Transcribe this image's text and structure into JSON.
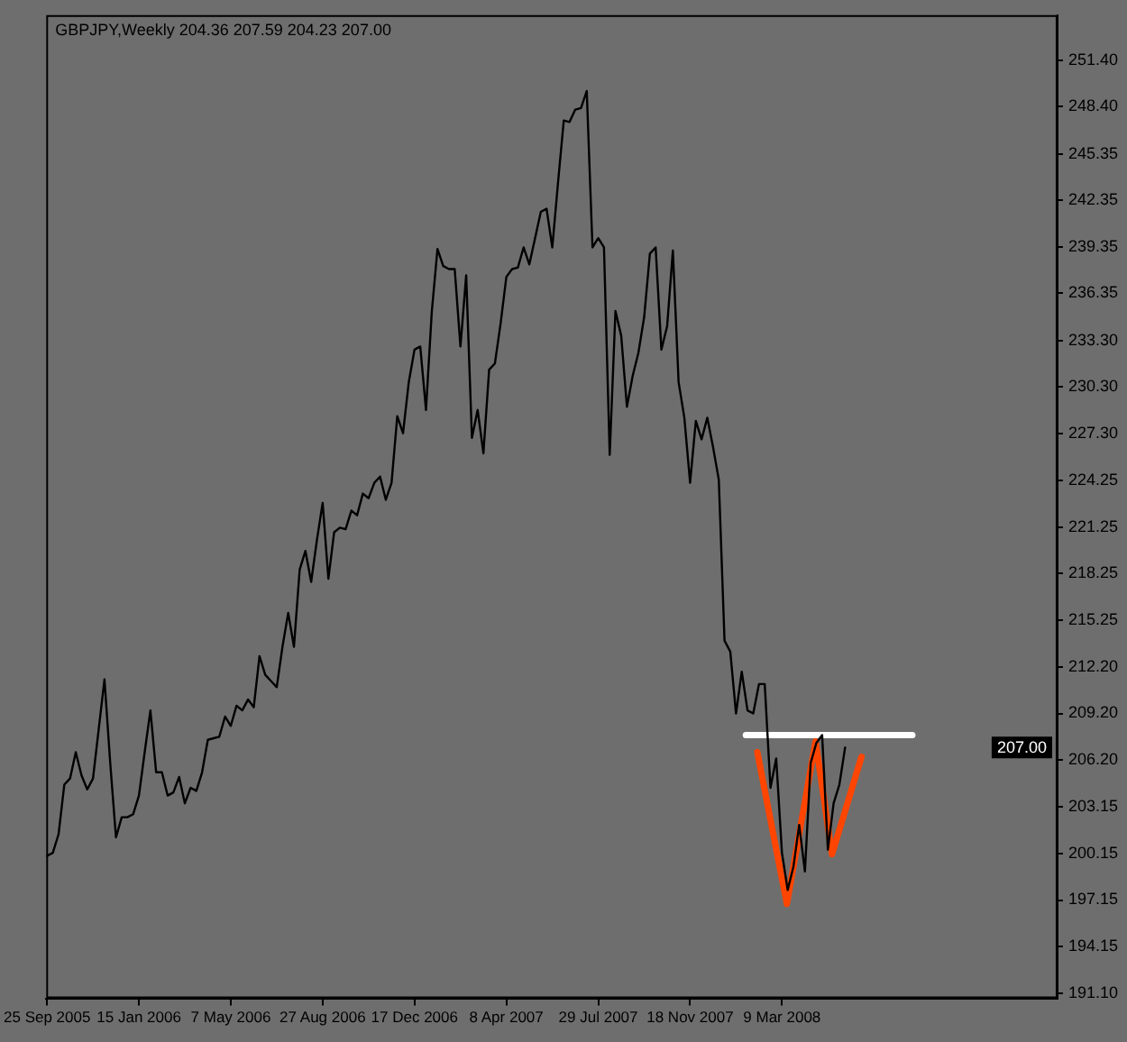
{
  "chart_data": {
    "type": "line",
    "title": "GBPJPY,Weekly 204.36 207.59 204.23 207.00",
    "x": [
      "2005-09-25",
      "2005-10-02",
      "2005-10-09",
      "2005-10-16",
      "2005-10-23",
      "2005-10-30",
      "2005-11-06",
      "2005-11-13",
      "2005-11-20",
      "2005-11-27",
      "2005-12-04",
      "2005-12-11",
      "2005-12-18",
      "2005-12-25",
      "2006-01-01",
      "2006-01-08",
      "2006-01-15",
      "2006-01-22",
      "2006-01-29",
      "2006-02-05",
      "2006-02-12",
      "2006-02-19",
      "2006-02-26",
      "2006-03-05",
      "2006-03-12",
      "2006-03-19",
      "2006-03-26",
      "2006-04-02",
      "2006-04-09",
      "2006-04-16",
      "2006-04-23",
      "2006-04-30",
      "2006-05-07",
      "2006-05-14",
      "2006-05-21",
      "2006-05-28",
      "2006-06-04",
      "2006-06-11",
      "2006-06-18",
      "2006-06-25",
      "2006-07-02",
      "2006-07-09",
      "2006-07-16",
      "2006-07-23",
      "2006-07-30",
      "2006-08-06",
      "2006-08-13",
      "2006-08-20",
      "2006-08-27",
      "2006-09-03",
      "2006-09-10",
      "2006-09-17",
      "2006-09-24",
      "2006-10-01",
      "2006-10-08",
      "2006-10-15",
      "2006-10-22",
      "2006-10-29",
      "2006-11-05",
      "2006-11-12",
      "2006-11-19",
      "2006-11-26",
      "2006-12-03",
      "2006-12-10",
      "2006-12-17",
      "2006-12-24",
      "2006-12-31",
      "2007-01-07",
      "2007-01-14",
      "2007-01-21",
      "2007-01-28",
      "2007-02-04",
      "2007-02-11",
      "2007-02-18",
      "2007-02-25",
      "2007-03-04",
      "2007-03-11",
      "2007-03-18",
      "2007-03-25",
      "2007-04-01",
      "2007-04-08",
      "2007-04-15",
      "2007-04-22",
      "2007-04-29",
      "2007-05-06",
      "2007-05-13",
      "2007-05-20",
      "2007-05-27",
      "2007-06-03",
      "2007-06-10",
      "2007-06-17",
      "2007-06-24",
      "2007-07-01",
      "2007-07-08",
      "2007-07-15",
      "2007-07-22",
      "2007-07-29",
      "2007-08-05",
      "2007-08-12",
      "2007-08-19",
      "2007-08-26",
      "2007-09-02",
      "2007-09-09",
      "2007-09-16",
      "2007-09-23",
      "2007-09-30",
      "2007-10-07",
      "2007-10-14",
      "2007-10-21",
      "2007-10-28",
      "2007-11-04",
      "2007-11-11",
      "2007-11-18",
      "2007-11-25",
      "2007-12-02",
      "2007-12-09",
      "2007-12-16",
      "2007-12-23",
      "2007-12-30",
      "2008-01-06",
      "2008-01-13",
      "2008-01-20",
      "2008-01-27",
      "2008-02-03",
      "2008-02-10",
      "2008-02-17",
      "2008-02-24",
      "2008-03-02",
      "2008-03-09",
      "2008-03-16",
      "2008-03-23",
      "2008-03-30",
      "2008-04-06",
      "2008-04-13",
      "2008-04-20",
      "2008-04-27",
      "2008-05-04",
      "2008-05-11",
      "2008-05-18",
      "2008-05-25"
    ],
    "series": [
      {
        "color": "#000000",
        "values": [
          200.0,
          200.2,
          201.4,
          204.6,
          205.0,
          206.7,
          205.2,
          204.3,
          205.0,
          208.2,
          211.4,
          206.0,
          201.2,
          202.5,
          202.5,
          202.7,
          203.9,
          206.7,
          209.4,
          205.4,
          205.4,
          203.9,
          204.1,
          205.1,
          203.4,
          204.4,
          204.2,
          205.4,
          207.5,
          207.6,
          207.7,
          209.0,
          208.4,
          209.7,
          209.4,
          210.1,
          209.6,
          212.9,
          211.7,
          211.3,
          210.9,
          213.5,
          215.7,
          213.5,
          218.5,
          219.7,
          217.7,
          220.4,
          222.8,
          217.9,
          220.9,
          221.2,
          221.1,
          222.3,
          222.0,
          223.4,
          223.1,
          224.1,
          224.5,
          223.0,
          224.1,
          228.4,
          227.3,
          230.6,
          232.7,
          232.9,
          228.8,
          235.1,
          239.2,
          238.1,
          237.9,
          237.9,
          232.9,
          237.5,
          227.0,
          228.8,
          226.0,
          231.4,
          231.8,
          234.4,
          237.4,
          237.9,
          238.0,
          239.3,
          238.2,
          239.9,
          241.6,
          241.8,
          239.3,
          243.5,
          247.5,
          247.4,
          248.2,
          248.3,
          249.4,
          239.3,
          239.9,
          239.3,
          225.9,
          235.2,
          233.6,
          229.0,
          231.0,
          232.5,
          234.8,
          238.9,
          239.3,
          232.7,
          234.2,
          239.1,
          230.6,
          228.3,
          224.1,
          228.1,
          226.9,
          228.3,
          226.4,
          224.3,
          213.9,
          213.2,
          209.2,
          211.9,
          209.4,
          209.2,
          211.1,
          211.1,
          204.4,
          206.3,
          200.2,
          197.8,
          199.3,
          202.0,
          199.0,
          206.0,
          207.3,
          207.8,
          200.4,
          203.4,
          204.6,
          207.0
        ]
      },
      {
        "color": "#ffffff",
        "x": [
          "2008-01-25",
          "2008-08-15"
        ],
        "values": [
          207.8,
          207.8
        ]
      },
      {
        "color": "#ff4500",
        "x": [
          "2008-02-08",
          "2008-03-15",
          "2008-04-19",
          "2008-05-09",
          "2008-06-14"
        ],
        "values": [
          206.7,
          196.9,
          207.4,
          200.1,
          206.4
        ]
      }
    ],
    "xlim": [
      "2005-09-24",
      "2009-02-08"
    ],
    "xticks": [
      {
        "value": "2005-09-25",
        "label": "25 Sep 2005"
      },
      {
        "value": "2006-01-15",
        "label": "15 Jan 2006"
      },
      {
        "value": "2006-05-07",
        "label": "7 May 2006"
      },
      {
        "value": "2006-08-27",
        "label": "27 Aug 2006"
      },
      {
        "value": "2006-12-17",
        "label": "17 Dec 2006"
      },
      {
        "value": "2007-04-08",
        "label": "8 Apr 2007"
      },
      {
        "value": "2007-07-29",
        "label": "29 Jul 2007"
      },
      {
        "value": "2007-11-18",
        "label": "18 Nov 2007"
      },
      {
        "value": "2008-03-09",
        "label": "9 Mar 2008"
      }
    ],
    "ylim": [
      190.8,
      254.3
    ],
    "yticks": [
      {
        "value": 191.1,
        "label": "191.10"
      },
      194.15,
      197.15,
      200.15,
      203.15,
      {
        "value": 206.2,
        "label": "206.20"
      },
      {
        "value": 209.2,
        "label": "209.20"
      },
      {
        "value": 212.2,
        "label": "212.20"
      },
      215.25,
      218.25,
      221.25,
      224.25,
      {
        "value": 227.3,
        "label": "227.30"
      },
      {
        "value": 230.3,
        "label": "230.30"
      },
      {
        "value": 233.3,
        "label": "233.30"
      },
      236.35,
      239.35,
      242.35,
      245.35,
      {
        "value": 248.4,
        "label": "248.40"
      },
      {
        "value": 251.4,
        "label": "251.40"
      }
    ],
    "marker": "none",
    "annotations": [
      {
        "text": "207.00",
        "y": 207.0
      }
    ]
  }
}
